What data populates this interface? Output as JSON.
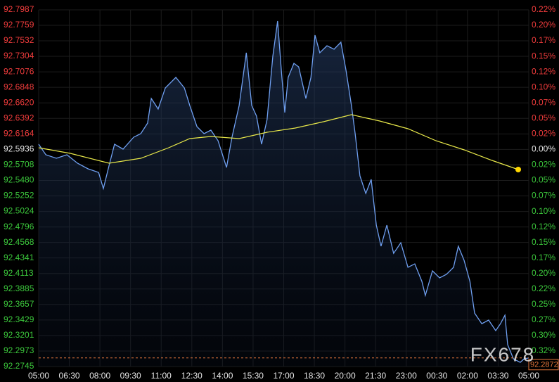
{
  "chart_data": {
    "type": "line",
    "xlim": [
      0,
      1440
    ],
    "xticks": [
      {
        "value": 0,
        "label": "05:00"
      },
      {
        "value": 90,
        "label": "06:30"
      },
      {
        "value": 180,
        "label": "08:00"
      },
      {
        "value": 270,
        "label": "09:30"
      },
      {
        "value": 360,
        "label": "11:00"
      },
      {
        "value": 450,
        "label": "12:30"
      },
      {
        "value": 540,
        "label": "14:00"
      },
      {
        "value": 630,
        "label": "15:30"
      },
      {
        "value": 720,
        "label": "17:00"
      },
      {
        "value": 810,
        "label": "18:30"
      },
      {
        "value": 900,
        "label": "20:00"
      },
      {
        "value": 990,
        "label": "21:30"
      },
      {
        "value": 1080,
        "label": "23:00"
      },
      {
        "value": 1170,
        "label": "00:30"
      },
      {
        "value": 1260,
        "label": "02:00"
      },
      {
        "value": 1350,
        "label": "03:30"
      },
      {
        "value": 1440,
        "label": "05:00"
      }
    ],
    "ylim": [
      92.2745,
      92.7987
    ],
    "yticks": [
      92.7987,
      92.7759,
      92.7532,
      92.7304,
      92.7076,
      92.6848,
      {
        "value": 92.662,
        "label": "92.6620"
      },
      92.6392,
      92.6164,
      92.5936,
      92.5708,
      {
        "value": 92.548,
        "label": "92.5480"
      },
      92.5252,
      92.5024,
      92.4796,
      92.4568,
      92.4341,
      92.4113,
      92.3885,
      92.3657,
      92.3429,
      92.3201,
      92.2973,
      92.2745
    ],
    "y2lim": [
      -0.3446,
      0.2215
    ],
    "y2ticks": [
      {
        "value": 0.2215,
        "label": "0.22%"
      },
      {
        "value": 0.1969,
        "label": "0.20%"
      },
      {
        "value": 0.1723,
        "label": "0.17%"
      },
      {
        "value": 0.1477,
        "label": "0.15%"
      },
      {
        "value": 0.1231,
        "label": "0.12%"
      },
      {
        "value": 0.0985,
        "label": "0.10%"
      },
      {
        "value": 0.0738,
        "label": "0.07%"
      },
      {
        "value": 0.0492,
        "label": "0.05%"
      },
      {
        "value": 0.0246,
        "label": "0.02%"
      },
      {
        "value": 0,
        "label": "0.00%"
      },
      {
        "value": -0.0246,
        "label": "0.02%"
      },
      {
        "value": -0.0492,
        "label": "0.05%"
      },
      {
        "value": -0.0738,
        "label": "0.07%"
      },
      {
        "value": -0.0985,
        "label": "0.10%"
      },
      {
        "value": -0.1231,
        "label": "0.12%"
      },
      {
        "value": -0.1477,
        "label": "0.15%"
      },
      {
        "value": -0.1723,
        "label": "0.17%"
      },
      {
        "value": -0.1969,
        "label": "0.20%"
      },
      {
        "value": -0.2215,
        "label": "0.22%"
      },
      {
        "value": -0.2461,
        "label": "0.25%"
      },
      {
        "value": -0.2707,
        "label": "0.27%"
      },
      {
        "value": -0.2953,
        "label": "0.30%"
      },
      {
        "value": -0.3199,
        "label": "0.32%"
      }
    ],
    "up_color": "#f03c3c",
    "down_color": "#3cc83c",
    "flat_color": "#e8e8e8",
    "grid": true,
    "series": [
      {
        "color": "#6f9ff0",
        "x": [
          0,
          21,
          52,
          83,
          114,
          145,
          176,
          190,
          207,
          223,
          248,
          279,
          300,
          320,
          331,
          351,
          372,
          403,
          428,
          444,
          465,
          486,
          506,
          527,
          552,
          568,
          589,
          610,
          626,
          640,
          655,
          671,
          688,
          702,
          713,
          723,
          733,
          750,
          764,
          785,
          800,
          812,
          826,
          847,
          868,
          888,
          903,
          919,
          930,
          944,
          961,
          977,
          992,
          1006,
          1023,
          1043,
          1064,
          1085,
          1105,
          1126,
          1136,
          1157,
          1178,
          1198,
          1219,
          1233,
          1250,
          1267,
          1281,
          1302,
          1322,
          1343,
          1357,
          1370,
          1378,
          1395,
          1415,
          1426,
          1440
        ],
        "values": [
          92.6012,
          92.5857,
          92.5805,
          92.5857,
          92.5733,
          92.565,
          92.5598,
          92.5361,
          92.5702,
          92.6012,
          92.594,
          92.6115,
          92.6167,
          92.6322,
          92.6684,
          92.6529,
          92.6839,
          92.6994,
          92.6839,
          92.6581,
          92.6271,
          92.6167,
          92.6219,
          92.6064,
          92.5671,
          92.6115,
          92.6581,
          92.7356,
          92.6581,
          92.6426,
          92.6012,
          92.6374,
          92.7305,
          92.7822,
          92.7098,
          92.6478,
          92.6994,
          92.7201,
          92.7149,
          92.6684,
          92.6994,
          92.7615,
          92.7356,
          92.746,
          92.7408,
          92.7511,
          92.7098,
          92.6581,
          92.6167,
          92.5547,
          92.5288,
          92.5495,
          92.4823,
          92.4513,
          92.4823,
          92.4409,
          92.4564,
          92.4203,
          92.4254,
          92.3996,
          92.3789,
          92.4151,
          92.4048,
          92.4099,
          92.4203,
          92.4513,
          92.4306,
          92.3996,
          92.353,
          92.3375,
          92.3427,
          92.3272,
          92.3375,
          92.3499,
          92.3065,
          92.2858,
          92.2806,
          92.2858,
          92.2872
        ]
      },
      {
        "color": "#e8e84a",
        "x": [
          0,
          93,
          207,
          300,
          382,
          444,
          506,
          589,
          671,
          754,
          837,
          919,
          1002,
          1085,
          1167,
          1250,
          1332,
          1409
        ],
        "values": [
          92.596,
          92.5878,
          92.5733,
          92.5805,
          92.596,
          92.6095,
          92.6126,
          92.6095,
          92.6188,
          92.625,
          92.6343,
          92.6446,
          92.6353,
          92.624,
          92.6064,
          92.5929,
          92.5774,
          92.564
        ]
      }
    ],
    "last_price": 92.2872,
    "last_price_color": "#e8783c",
    "watermark": "FX678"
  }
}
